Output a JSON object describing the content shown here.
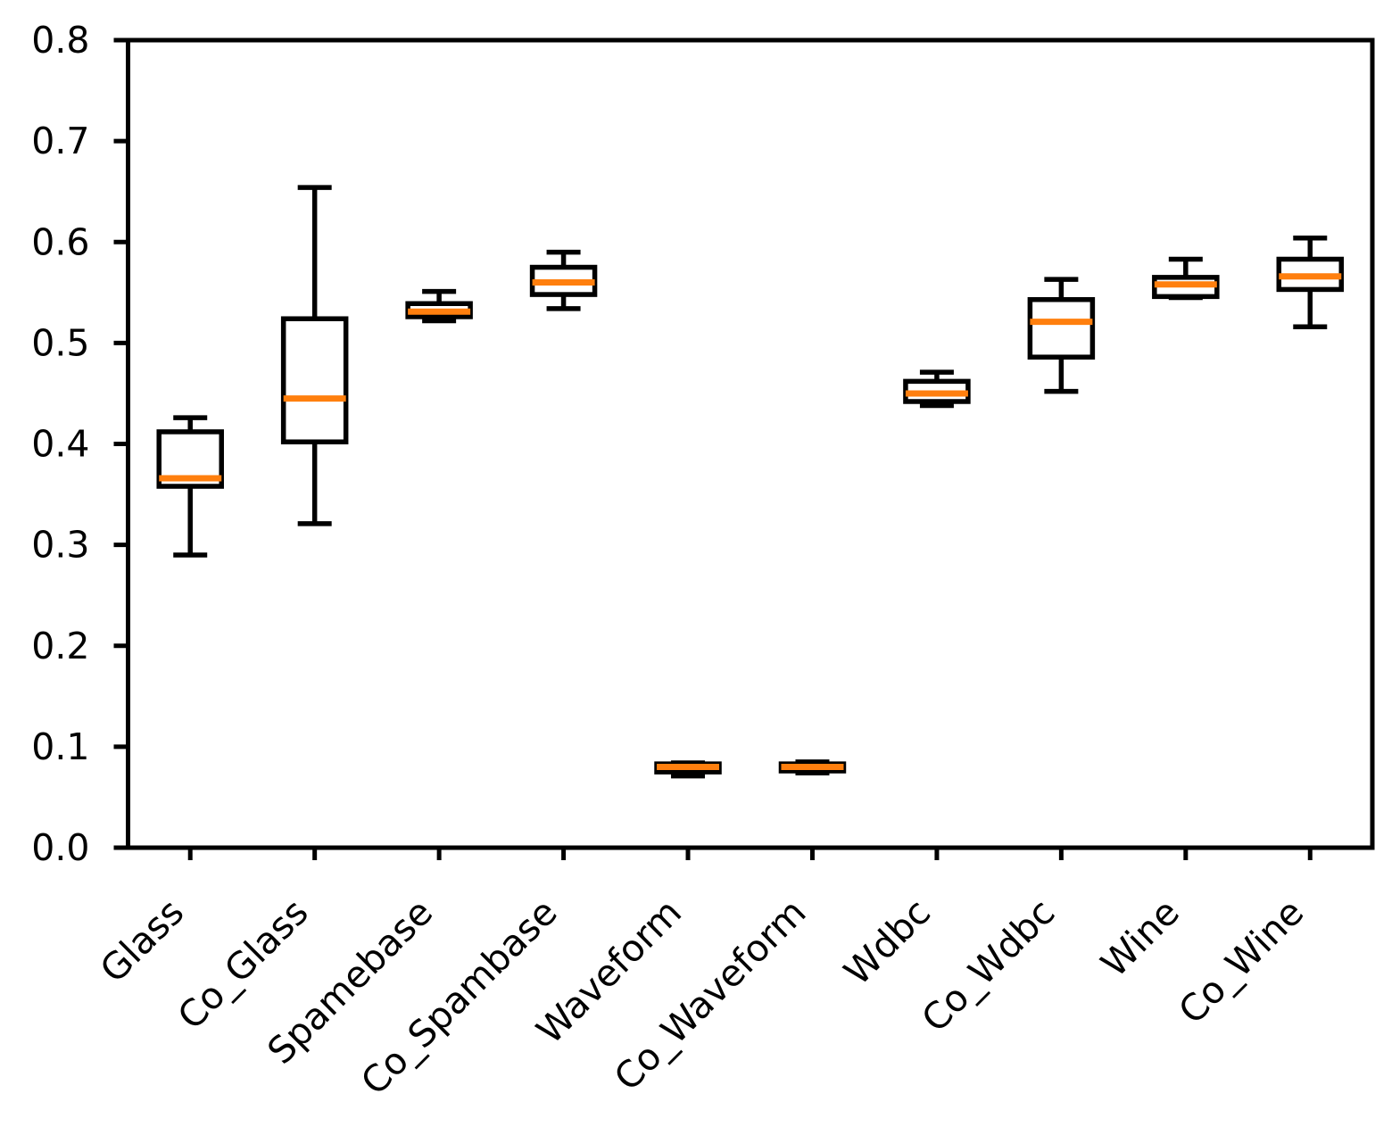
{
  "chart_data": {
    "type": "boxplot",
    "title": "",
    "xlabel": "",
    "ylabel": "",
    "grid": false,
    "legend": null,
    "ylim": [
      0.0,
      0.8
    ],
    "ytick_labels": [
      "0.0",
      "0.1",
      "0.2",
      "0.3",
      "0.4",
      "0.5",
      "0.6",
      "0.7",
      "0.8"
    ],
    "x_tick_rotation_deg": 45,
    "categories": [
      "Glass",
      "Co_Glass",
      "Spamebase",
      "Co_Spambase",
      "Waveform",
      "Co_Waveform",
      "Wdbc",
      "Co_Wdbc",
      "Wine",
      "Co_Wine"
    ],
    "series": [
      {
        "name": "Glass",
        "whislo": 0.29,
        "q1": 0.358,
        "med": 0.366,
        "q3": 0.412,
        "whishi": 0.426
      },
      {
        "name": "Co_Glass",
        "whislo": 0.321,
        "q1": 0.402,
        "med": 0.445,
        "q3": 0.524,
        "whishi": 0.654
      },
      {
        "name": "Spamebase",
        "whislo": 0.522,
        "q1": 0.526,
        "med": 0.531,
        "q3": 0.539,
        "whishi": 0.551
      },
      {
        "name": "Co_Spambase",
        "whislo": 0.534,
        "q1": 0.548,
        "med": 0.56,
        "q3": 0.575,
        "whishi": 0.59
      },
      {
        "name": "Waveform",
        "whislo": 0.071,
        "q1": 0.075,
        "med": 0.08,
        "q3": 0.083,
        "whishi": 0.084
      },
      {
        "name": "Co_Waveform",
        "whislo": 0.074,
        "q1": 0.076,
        "med": 0.08,
        "q3": 0.083,
        "whishi": 0.085
      },
      {
        "name": "Wdbc",
        "whislo": 0.438,
        "q1": 0.442,
        "med": 0.45,
        "q3": 0.462,
        "whishi": 0.471
      },
      {
        "name": "Co_Wdbc",
        "whislo": 0.452,
        "q1": 0.486,
        "med": 0.521,
        "q3": 0.543,
        "whishi": 0.563
      },
      {
        "name": "Wine",
        "whislo": 0.545,
        "q1": 0.546,
        "med": 0.558,
        "q3": 0.565,
        "whishi": 0.583
      },
      {
        "name": "Co_Wine",
        "whislo": 0.516,
        "q1": 0.553,
        "med": 0.566,
        "q3": 0.583,
        "whishi": 0.604
      }
    ],
    "colors": {
      "box": "#000000",
      "median": "#ff7f0e",
      "axis": "#000000",
      "background": "#ffffff"
    }
  }
}
